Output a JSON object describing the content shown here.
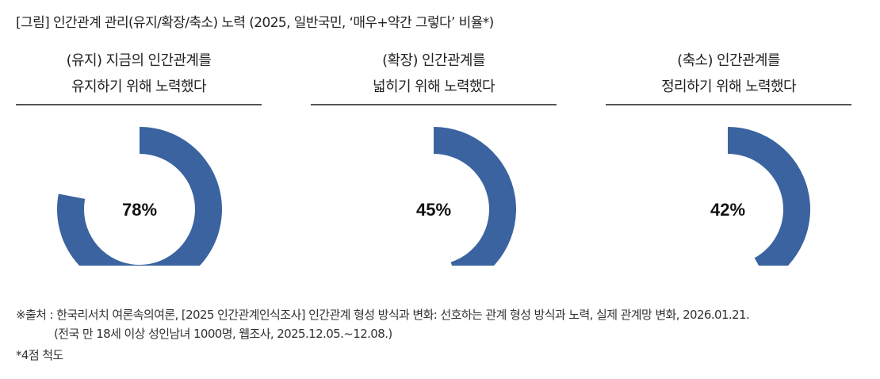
{
  "title": "[그림] 인간관계 관리(유지/확장/축소) 노력 (2025, 일반국민, ‘매우+약간 그렇다’ 비율*)",
  "chart_data": [
    {
      "type": "pie",
      "donut": true,
      "title_lines": [
        "(유지) 지금의 인간관계를",
        "유지하기 위해 노력했다"
      ],
      "value": 78,
      "label": "78%",
      "color": "#3a63a0"
    },
    {
      "type": "pie",
      "donut": true,
      "title_lines": [
        "(확장) 인간관계를",
        "넓히기 위해 노력했다"
      ],
      "value": 45,
      "label": "45%",
      "color": "#3a63a0"
    },
    {
      "type": "pie",
      "donut": true,
      "title_lines": [
        "(축소) 인간관계를",
        "정리하기 위해 노력했다"
      ],
      "value": 42,
      "label": "42%",
      "color": "#3a63a0"
    }
  ],
  "footer": {
    "source": "※출처 : 한국리서치 여론속의여론, [2025 인간관계인식조사] 인간관계 형성 방식과 변화: 선호하는 관계 형성 방식과 노력, 실제 관계망 변화, 2026.01.21.",
    "detail": "(전국 만 18세 이상 성인남녀 1000명, 웹조사, 2025.12.05.~12.08.)",
    "note": "*4점 척도"
  }
}
